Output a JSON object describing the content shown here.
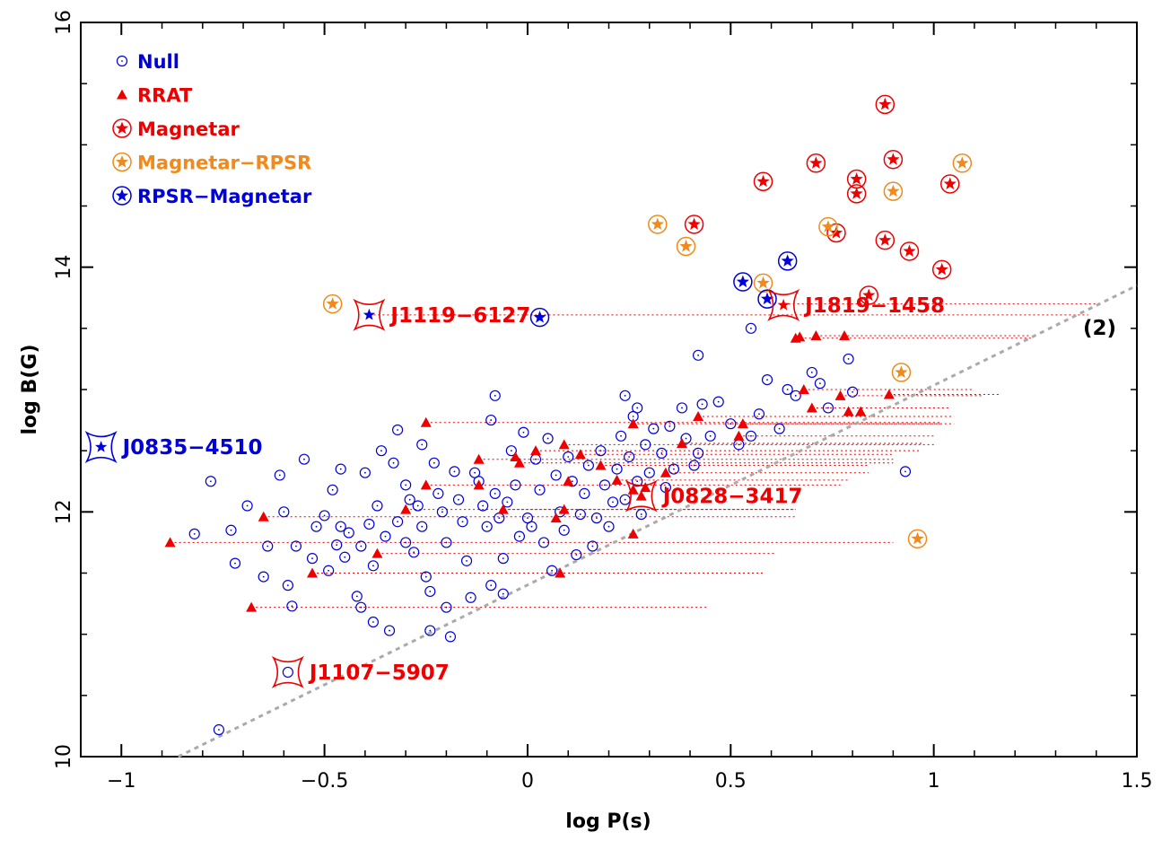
{
  "chart_data": {
    "type": "scatter",
    "xlabel": "log P(s)",
    "ylabel": "log B(G)",
    "xlim": [
      -1.1,
      1.5
    ],
    "ylim": [
      10,
      16
    ],
    "xticks": [
      {
        "v": -1,
        "label": "−1"
      },
      {
        "v": -0.5,
        "label": "−0.5"
      },
      {
        "v": 0,
        "label": "0"
      },
      {
        "v": 0.5,
        "label": "0.5"
      },
      {
        "v": 1,
        "label": "1"
      },
      {
        "v": 1.5,
        "label": "1.5"
      }
    ],
    "yticks": [
      {
        "v": 10,
        "label": "10"
      },
      {
        "v": 12,
        "label": "12"
      },
      {
        "v": 14,
        "label": "14"
      },
      {
        "v": 16,
        "label": "16"
      }
    ],
    "grid": false,
    "legend_position": "top-left",
    "colors": {
      "null": "#0000dd",
      "rrat": "#ee0000",
      "magnetar": "#ee0000",
      "magnetar_rpsr": "#f08a1c",
      "rpsr_magnetar": "#0000dd",
      "deathline": "#aaaaaa"
    },
    "legend": [
      {
        "key": "null",
        "label": "Null"
      },
      {
        "key": "rrat",
        "label": "RRAT"
      },
      {
        "key": "magnetar",
        "label": "Magnetar"
      },
      {
        "key": "magnetar_rpsr",
        "label": "Magnetar−RPSR"
      },
      {
        "key": "rpsr_magnetar",
        "label": "RPSR−Magnetar"
      }
    ],
    "death_line": {
      "points": [
        [
          -0.86,
          10.0
        ],
        [
          1.5,
          13.85
        ]
      ],
      "label": "(2)"
    },
    "series": [
      {
        "name": "Null",
        "key": "null",
        "points": [
          [
            -0.76,
            10.22
          ],
          [
            -0.78,
            12.25
          ],
          [
            -0.73,
            11.85
          ],
          [
            -0.72,
            11.58
          ],
          [
            -0.69,
            12.05
          ],
          [
            -0.65,
            11.47
          ],
          [
            -0.64,
            11.72
          ],
          [
            -0.61,
            12.3
          ],
          [
            -0.59,
            11.4
          ],
          [
            -0.58,
            11.23
          ],
          [
            -0.57,
            11.72
          ],
          [
            -0.55,
            12.43
          ],
          [
            -0.53,
            11.62
          ],
          [
            -0.52,
            11.88
          ],
          [
            -0.5,
            11.97
          ],
          [
            -0.49,
            11.52
          ],
          [
            -0.48,
            12.18
          ],
          [
            -0.47,
            11.73
          ],
          [
            -0.46,
            11.88
          ],
          [
            -0.46,
            12.35
          ],
          [
            -0.45,
            11.63
          ],
          [
            -0.44,
            11.83
          ],
          [
            -0.42,
            11.31
          ],
          [
            -0.41,
            11.22
          ],
          [
            -0.41,
            11.72
          ],
          [
            -0.4,
            12.32
          ],
          [
            -0.39,
            11.9
          ],
          [
            -0.38,
            11.56
          ],
          [
            -0.38,
            11.1
          ],
          [
            -0.37,
            12.05
          ],
          [
            -0.36,
            12.5
          ],
          [
            -0.35,
            11.8
          ],
          [
            -0.34,
            11.03
          ],
          [
            -0.33,
            12.4
          ],
          [
            -0.32,
            12.67
          ],
          [
            -0.32,
            11.92
          ],
          [
            -0.3,
            12.22
          ],
          [
            -0.3,
            11.75
          ],
          [
            -0.29,
            12.1
          ],
          [
            -0.28,
            11.67
          ],
          [
            -0.27,
            12.05
          ],
          [
            -0.26,
            11.88
          ],
          [
            -0.25,
            11.47
          ],
          [
            -0.24,
            11.35
          ],
          [
            -0.24,
            11.03
          ],
          [
            -0.23,
            12.4
          ],
          [
            -0.22,
            12.15
          ],
          [
            -0.21,
            12.0
          ],
          [
            -0.2,
            11.75
          ],
          [
            -0.2,
            11.22
          ],
          [
            -0.19,
            10.98
          ],
          [
            -0.18,
            12.33
          ],
          [
            -0.17,
            12.1
          ],
          [
            -0.16,
            11.92
          ],
          [
            -0.15,
            11.6
          ],
          [
            -0.14,
            11.3
          ],
          [
            -0.13,
            12.32
          ],
          [
            -0.12,
            12.25
          ],
          [
            -0.11,
            12.05
          ],
          [
            -0.1,
            11.88
          ],
          [
            -0.09,
            11.4
          ],
          [
            -0.09,
            12.75
          ],
          [
            -0.08,
            12.15
          ],
          [
            -0.07,
            11.95
          ],
          [
            -0.06,
            11.62
          ],
          [
            -0.06,
            11.33
          ],
          [
            -0.05,
            12.08
          ],
          [
            -0.04,
            12.5
          ],
          [
            -0.03,
            12.22
          ],
          [
            -0.02,
            11.8
          ],
          [
            -0.01,
            12.65
          ],
          [
            0.0,
            11.95
          ],
          [
            0.01,
            11.88
          ],
          [
            0.02,
            12.43
          ],
          [
            0.03,
            12.18
          ],
          [
            0.04,
            11.75
          ],
          [
            0.05,
            12.6
          ],
          [
            0.06,
            11.52
          ],
          [
            0.07,
            12.3
          ],
          [
            0.08,
            12.0
          ],
          [
            0.09,
            11.85
          ],
          [
            0.1,
            12.45
          ],
          [
            0.11,
            12.25
          ],
          [
            0.12,
            11.65
          ],
          [
            0.13,
            11.98
          ],
          [
            0.14,
            12.15
          ],
          [
            0.15,
            12.38
          ],
          [
            0.16,
            11.72
          ],
          [
            0.17,
            11.95
          ],
          [
            0.18,
            12.5
          ],
          [
            0.19,
            12.22
          ],
          [
            0.2,
            11.88
          ],
          [
            0.21,
            12.08
          ],
          [
            0.22,
            12.35
          ],
          [
            0.23,
            12.62
          ],
          [
            0.24,
            12.1
          ],
          [
            0.25,
            12.45
          ],
          [
            0.26,
            12.78
          ],
          [
            0.27,
            12.25
          ],
          [
            0.28,
            11.98
          ],
          [
            0.29,
            12.55
          ],
          [
            0.3,
            12.32
          ],
          [
            0.31,
            12.68
          ],
          [
            0.33,
            12.48
          ],
          [
            0.34,
            12.2
          ],
          [
            0.35,
            12.7
          ],
          [
            0.36,
            12.35
          ],
          [
            0.38,
            12.85
          ],
          [
            0.39,
            12.6
          ],
          [
            0.41,
            12.38
          ],
          [
            0.42,
            12.48
          ],
          [
            0.43,
            12.88
          ],
          [
            0.45,
            12.62
          ],
          [
            0.47,
            12.9
          ],
          [
            0.5,
            12.72
          ],
          [
            0.52,
            12.55
          ],
          [
            0.55,
            13.5
          ],
          [
            0.57,
            12.8
          ],
          [
            0.59,
            13.08
          ],
          [
            0.62,
            12.68
          ],
          [
            0.64,
            13.0
          ],
          [
            0.66,
            12.95
          ],
          [
            0.7,
            13.14
          ],
          [
            0.72,
            13.05
          ],
          [
            0.74,
            12.85
          ],
          [
            0.79,
            13.25
          ],
          [
            0.8,
            12.98
          ],
          [
            0.93,
            12.33
          ],
          [
            -0.82,
            11.82
          ],
          [
            -0.6,
            12.0
          ],
          [
            -0.08,
            12.95
          ],
          [
            0.24,
            12.95
          ],
          [
            0.27,
            12.85
          ],
          [
            0.42,
            13.28
          ],
          [
            0.55,
            12.62
          ],
          [
            -0.26,
            12.55
          ]
        ]
      },
      {
        "name": "RRAT",
        "key": "rrat",
        "points": [
          [
            -0.88,
            11.75
          ],
          [
            -0.68,
            11.22
          ],
          [
            -0.65,
            11.96
          ],
          [
            -0.53,
            11.5
          ],
          [
            -0.37,
            11.66
          ],
          [
            -0.3,
            12.02
          ],
          [
            -0.25,
            12.22
          ],
          [
            -0.25,
            12.73
          ],
          [
            -0.12,
            12.43
          ],
          [
            -0.12,
            12.22
          ],
          [
            -0.06,
            12.02
          ],
          [
            -0.03,
            12.45
          ],
          [
            -0.02,
            12.4
          ],
          [
            0.02,
            12.5
          ],
          [
            0.08,
            11.5
          ],
          [
            0.09,
            12.55
          ],
          [
            0.09,
            12.02
          ],
          [
            0.1,
            12.25
          ],
          [
            0.13,
            12.47
          ],
          [
            0.18,
            12.38
          ],
          [
            0.22,
            12.26
          ],
          [
            0.26,
            12.72
          ],
          [
            0.26,
            11.82
          ],
          [
            0.29,
            12.2
          ],
          [
            0.34,
            12.32
          ],
          [
            0.38,
            12.56
          ],
          [
            0.42,
            12.78
          ],
          [
            0.52,
            12.62
          ],
          [
            0.53,
            12.72
          ],
          [
            0.66,
            13.42
          ],
          [
            0.67,
            13.43
          ],
          [
            0.68,
            13.0
          ],
          [
            0.7,
            12.85
          ],
          [
            0.71,
            13.44
          ],
          [
            0.77,
            12.95
          ],
          [
            0.78,
            13.44
          ],
          [
            0.79,
            12.82
          ],
          [
            0.82,
            12.82
          ],
          [
            0.89,
            12.96
          ],
          [
            0.07,
            11.95
          ],
          [
            0.26,
            12.18
          ]
        ]
      },
      {
        "name": "Magnetar",
        "key": "magnetar",
        "points": [
          [
            0.41,
            14.35
          ],
          [
            0.58,
            14.7
          ],
          [
            0.71,
            14.85
          ],
          [
            0.76,
            14.28
          ],
          [
            0.81,
            14.6
          ],
          [
            0.81,
            14.72
          ],
          [
            0.84,
            13.77
          ],
          [
            0.88,
            15.33
          ],
          [
            0.88,
            14.22
          ],
          [
            0.9,
            14.88
          ],
          [
            0.94,
            14.13
          ],
          [
            1.02,
            13.98
          ],
          [
            1.04,
            14.68
          ]
        ]
      },
      {
        "name": "Magnetar-RPSR",
        "key": "magnetar_rpsr",
        "points": [
          [
            -0.48,
            13.7
          ],
          [
            0.32,
            14.35
          ],
          [
            0.39,
            14.17
          ],
          [
            0.58,
            13.87
          ],
          [
            0.74,
            14.33
          ],
          [
            0.9,
            14.62
          ],
          [
            0.92,
            13.14
          ],
          [
            0.96,
            11.78
          ],
          [
            1.07,
            14.85
          ]
        ]
      },
      {
        "name": "RPSR-Magnetar",
        "key": "rpsr_magnetar",
        "points": [
          [
            0.03,
            13.59
          ],
          [
            0.53,
            13.88
          ],
          [
            0.59,
            13.74
          ],
          [
            0.64,
            14.05
          ]
        ]
      }
    ],
    "ranges": [
      {
        "x1": -0.88,
        "x2": 0.9,
        "y": 11.75
      },
      {
        "x1": -0.68,
        "x2": 0.44,
        "y": 11.22
      },
      {
        "x1": -0.65,
        "x2": 0.66,
        "y": 11.96
      },
      {
        "x1": -0.53,
        "x2": 0.58,
        "y": 11.5
      },
      {
        "x1": -0.37,
        "x2": 0.61,
        "y": 11.66
      },
      {
        "x1": -0.3,
        "x2": 0.66,
        "y": 12.02
      },
      {
        "x1": -0.25,
        "x2": 0.77,
        "y": 12.22
      },
      {
        "x1": -0.25,
        "x2": 1.02,
        "y": 12.73
      },
      {
        "x1": -0.12,
        "x2": 0.9,
        "y": 12.43
      },
      {
        "x1": -0.06,
        "x2": 0.66,
        "y": 12.02
      },
      {
        "x1": -0.02,
        "x2": 0.9,
        "y": 12.4
      },
      {
        "x1": 0.02,
        "x2": 0.97,
        "y": 12.5
      },
      {
        "x1": 0.09,
        "x2": 1.0,
        "y": 12.55
      },
      {
        "x1": 0.13,
        "x2": 0.9,
        "y": 12.47
      },
      {
        "x1": 0.18,
        "x2": 0.84,
        "y": 12.38
      },
      {
        "x1": 0.22,
        "x2": 0.79,
        "y": 12.26
      },
      {
        "x1": 0.26,
        "x2": 1.02,
        "y": 12.72
      },
      {
        "x1": 0.34,
        "x2": 0.84,
        "y": 12.32
      },
      {
        "x1": 0.38,
        "x2": 0.97,
        "y": 12.56
      },
      {
        "x1": 0.42,
        "x2": 1.05,
        "y": 12.78
      },
      {
        "x1": 0.52,
        "x2": 1.0,
        "y": 12.62
      },
      {
        "x1": 0.53,
        "x2": 1.05,
        "y": 12.72
      },
      {
        "x1": 0.66,
        "x2": 1.24,
        "y": 13.42
      },
      {
        "x1": 0.71,
        "x2": 1.24,
        "y": 13.44
      },
      {
        "x1": 0.62,
        "x2": 1.4,
        "y": 13.7
      },
      {
        "x1": -0.39,
        "x2": 1.38,
        "y": 13.61
      },
      {
        "x1": 0.68,
        "x2": 1.1,
        "y": 13.0
      },
      {
        "x1": 0.77,
        "x2": 1.12,
        "y": 12.95
      },
      {
        "x1": 0.7,
        "x2": 1.04,
        "y": 12.85
      },
      {
        "x1": 0.89,
        "x2": 1.16,
        "y": 12.96
      }
    ],
    "named_pulsars": [
      {
        "label": "J1119−6127",
        "x": -0.39,
        "y": 13.61,
        "color": "#ee0000",
        "marker": "blue-star"
      },
      {
        "label": "J1819−1458",
        "x": 0.63,
        "y": 13.69,
        "color": "#ee0000",
        "marker": "red-star"
      },
      {
        "label": "J0835−4510",
        "x": -1.05,
        "y": 12.53,
        "color": "#0000dd",
        "marker": "blue-star"
      },
      {
        "label": "J0828−3417",
        "x": 0.28,
        "y": 12.13,
        "color": "#ee0000",
        "marker": "red-triangle"
      },
      {
        "label": "J1107−5907",
        "x": -0.59,
        "y": 10.69,
        "color": "#ee0000",
        "marker": "blue-dot"
      }
    ]
  }
}
